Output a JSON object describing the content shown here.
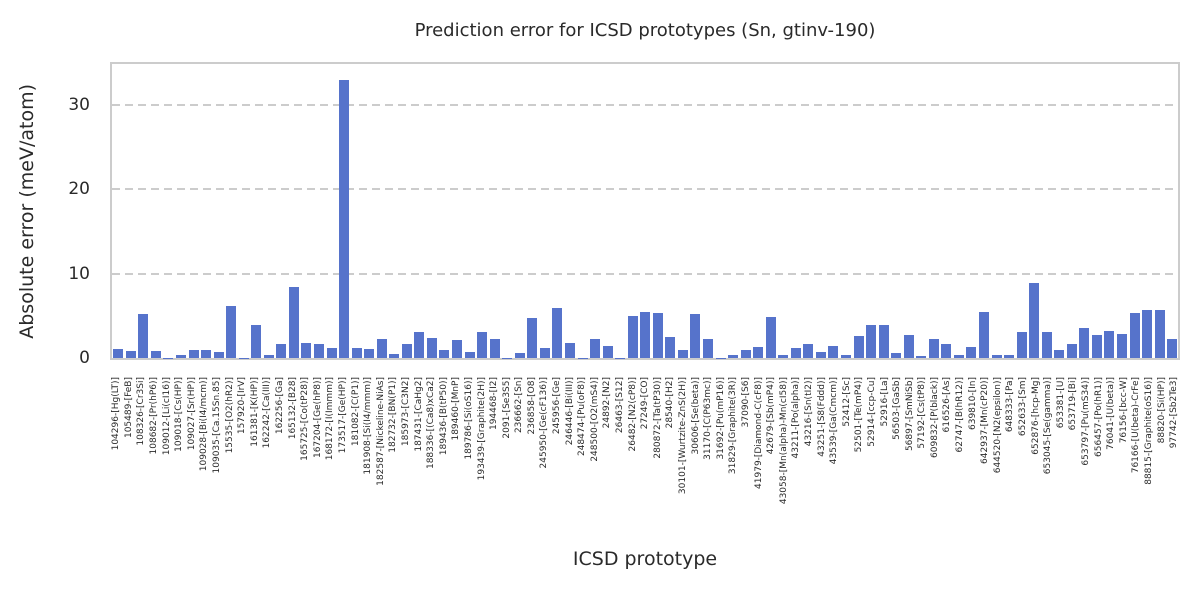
{
  "colors": {
    "bar": "#5673cb",
    "grid": "#cccccc",
    "spine": "#cccccc",
    "text": "#2a2a2a"
  },
  "chart_data": {
    "type": "bar",
    "title": "Prediction error for ICSD prototypes (Sn, gtinv-190)",
    "xlabel": "ICSD prototype",
    "ylabel": "Absolute error (meV/atom)",
    "ylim": [
      0,
      34.8
    ],
    "yticks": [
      0,
      10,
      20,
      30
    ],
    "grid": "horizontal-dashed",
    "legend": "none",
    "categories": [
      "104296-[Hg(LT)]",
      "105489-[FeB]",
      "108326-[Cr3Si]",
      "108682-[Pr(hP6)]",
      "109012-[Li(cI16)]",
      "109018-[Cs(HP)]",
      "109027-[Sr(HP)]",
      "109028-[Bi(I4/mcm)]",
      "109035-[Ca.15Sn.85]",
      "15535-[O2(hR2)]",
      "157920-[IrV]",
      "161381-[K(HP)]",
      "162242-[Ca(III)]",
      "162256-[Ga]",
      "165132-[B28]",
      "165725-[Co(tP28)]",
      "167204-[Ge(hP8)]",
      "168172-[I(Immm)]",
      "173517-[Ge(HP)]",
      "181082-[C(P1)]",
      "181908-[Si(I4/mmm)]",
      "182587-[Nickeline-NiAs]",
      "182732-[BN(P1)]",
      "185973-[C3N2]",
      "187431-[CaHg2]",
      "188336-[(Ca8)xCa2]",
      "189436-[B(tP50)]",
      "189460-[MnP]",
      "189786-[Si(oS16)]",
      "193439-[Graphite(2H)]",
      "194468-[I2]",
      "2091-[Se3S5]",
      "236662-[Sn]",
      "236858-[O8]",
      "245950-[Ge(cF136)]",
      "245956-[Ge]",
      "246446-[Bi(III)]",
      "248474-[Pu(oF8)]",
      "248500-[O2(mS4)]",
      "24892-[N2]",
      "26463-[S12]",
      "26482-[N2(cP8)]",
      "27249-[CO]",
      "280872-[Ta(tP30)]",
      "28540-[H2]",
      "30101-[Wurtzite-ZnS(2H)]",
      "30606-[Se(beta)]",
      "31170-[C(P63mc)]",
      "31692-[Pu(mP16)]",
      "31829-[Graphite(3R)]",
      "37090-[S6]",
      "41979-[Diamond-C(cF8)]",
      "42679-[Sb(mP4)]",
      "43058-[Mn(alpha)-Mn(cI58)]",
      "43211-[Po(alpha)]",
      "43216-[Sn(tI2)]",
      "43251-[S8(Fddd)]",
      "43539-[Ga(Cmcm)]",
      "52412-[Sc]",
      "52501-[Te(mP4)]",
      "52914-[ccp-Cu]",
      "52916-[La]",
      "56503-[GaSb]",
      "56897-[SmNiSb]",
      "57192-[Cs(tP8)]",
      "609832-[P(black)]",
      "616526-[As]",
      "62747-[B(hR12)]",
      "639810-[In]",
      "642937-[Mn(cP20)]",
      "644520-[N2(epsilon)]",
      "648333-[Pa]",
      "652633-[Sm]",
      "652876-[hcp-Mg]",
      "653045-[Se(gamma)]",
      "653381-[U]",
      "653719-[Bi]",
      "653797-[Pu(mS34)]",
      "656457-[Po(hR1)]",
      "76041-[U(beta)]",
      "76156-[bcc-W]",
      "76166-[U(beta)-CrFe]",
      "88815-[Graphite(oS16)]",
      "88820-[Si(HP)]",
      "97742-[Sb2Te3]"
    ],
    "values": [
      1.1,
      0.8,
      5.2,
      0.8,
      0.05,
      0.3,
      0.9,
      1.0,
      0.7,
      6.2,
      0.05,
      3.9,
      0.35,
      1.7,
      8.4,
      1.8,
      1.7,
      1.2,
      32.9,
      1.2,
      1.1,
      2.3,
      0.5,
      1.7,
      3.1,
      2.4,
      0.9,
      2.1,
      0.7,
      3.1,
      2.2,
      0.05,
      0.6,
      4.7,
      1.2,
      5.9,
      1.8,
      0.05,
      2.2,
      1.4,
      0.05,
      5.0,
      5.5,
      5.3,
      2.5,
      1.0,
      5.2,
      2.3,
      0.05,
      0.35,
      1.0,
      1.3,
      4.9,
      0.35,
      1.2,
      1.6,
      0.7,
      1.4,
      0.3,
      2.6,
      3.9,
      3.9,
      0.6,
      2.7,
      0.2,
      2.3,
      1.6,
      0.4,
      1.3,
      5.5,
      0.4,
      0.35,
      3.1,
      8.9,
      3.1,
      0.9,
      1.7,
      3.6,
      2.7,
      3.2,
      2.9,
      5.3,
      5.7,
      5.7,
      2.3
    ]
  }
}
